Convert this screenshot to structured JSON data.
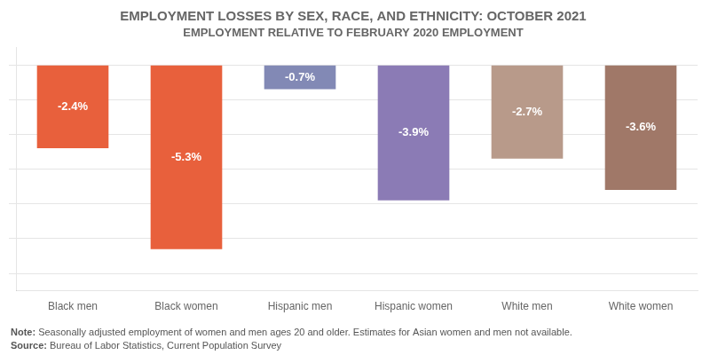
{
  "chart_data": {
    "type": "bar",
    "title": "EMPLOYMENT LOSSES BY SEX, RACE, AND ETHNICITY: OCTOBER 2021",
    "subtitle": "EMPLOYMENT RELATIVE TO FEBRUARY 2020 EMPLOYMENT",
    "categories": [
      "Black men",
      "Black women",
      "Hispanic men",
      "Hispanic women",
      "White men",
      "White women"
    ],
    "values": [
      -2.4,
      -5.3,
      -0.7,
      -3.9,
      -2.7,
      -3.6
    ],
    "value_labels": [
      "-2.4%",
      "-5.3%",
      "-0.7%",
      "-3.9%",
      "-2.7%",
      "-3.6%"
    ],
    "data_labels": true,
    "colors": [
      "#E8603C",
      "#E8603C",
      "#8289B5",
      "#8B7BB5",
      "#B89A8A",
      "#A07868"
    ],
    "ylim": [
      -6.5,
      0.5
    ],
    "yticks": [
      -6,
      -5,
      -4,
      -3,
      -2,
      -1,
      0
    ],
    "grid": true,
    "tick_labels": "x",
    "annotations": [
      "Note: Seasonally adjusted employment of women and men ages 20 and older. Estimates for Asian women and men not available.",
      "Source: Bureau of Labor Statistics, Current Population Survey"
    ]
  }
}
